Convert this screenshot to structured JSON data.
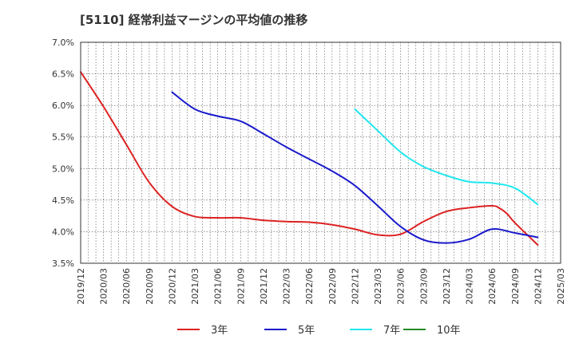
{
  "chart_data": {
    "type": "line",
    "title": "[5110]  経常利益マージンの平均値の推移",
    "xlabel": "",
    "ylabel": "",
    "ylim": [
      3.5,
      7.0
    ],
    "y_ticks": [
      "3.5%",
      "4.0%",
      "4.5%",
      "5.0%",
      "5.5%",
      "6.0%",
      "6.5%",
      "7.0%"
    ],
    "x_ticks": [
      "2019/12",
      "2020/03",
      "2020/06",
      "2020/09",
      "2020/12",
      "2021/03",
      "2021/06",
      "2021/09",
      "2021/12",
      "2022/03",
      "2022/06",
      "2022/09",
      "2022/12",
      "2023/03",
      "2023/06",
      "2023/09",
      "2023/12",
      "2024/03",
      "2024/06",
      "2024/09",
      "2024/12",
      "2025/03"
    ],
    "grid": true,
    "legend_position": "bottom",
    "series": [
      {
        "name": "3年",
        "color": "#dd2222",
        "x": [
          "2019/12",
          "2020/03",
          "2020/06",
          "2020/09",
          "2020/12",
          "2021/03",
          "2021/06",
          "2021/09",
          "2021/12",
          "2022/03",
          "2022/06",
          "2022/09",
          "2022/12",
          "2023/03",
          "2023/06",
          "2023/09",
          "2023/12",
          "2024/03",
          "2024/06",
          "2024/07",
          "2024/08",
          "2024/09",
          "2024/12"
        ],
        "values": [
          6.53,
          5.98,
          5.38,
          4.78,
          4.4,
          4.24,
          4.22,
          4.22,
          4.18,
          4.16,
          4.15,
          4.11,
          4.04,
          3.95,
          3.96,
          4.16,
          4.32,
          4.38,
          4.41,
          4.37,
          4.28,
          4.14,
          3.79
        ]
      },
      {
        "name": "5年",
        "color": "#1a1acc",
        "x": [
          "2020/12",
          "2021/03",
          "2021/06",
          "2021/09",
          "2021/12",
          "2022/03",
          "2022/06",
          "2022/09",
          "2022/12",
          "2023/03",
          "2023/06",
          "2023/09",
          "2023/12",
          "2024/03",
          "2024/06",
          "2024/09",
          "2024/12"
        ],
        "values": [
          6.21,
          5.94,
          5.83,
          5.75,
          5.55,
          5.34,
          5.15,
          4.96,
          4.73,
          4.41,
          4.08,
          3.87,
          3.82,
          3.88,
          4.04,
          3.98,
          3.91
        ]
      },
      {
        "name": "7年",
        "color": "#22e6ee",
        "x": [
          "2022/12",
          "2023/03",
          "2023/06",
          "2023/09",
          "2023/12",
          "2024/03",
          "2024/06",
          "2024/09",
          "2024/12"
        ],
        "values": [
          5.94,
          5.6,
          5.26,
          5.03,
          4.89,
          4.79,
          4.77,
          4.69,
          4.43
        ]
      },
      {
        "name": "10年",
        "color": "#228b22",
        "x": [],
        "values": []
      }
    ]
  }
}
